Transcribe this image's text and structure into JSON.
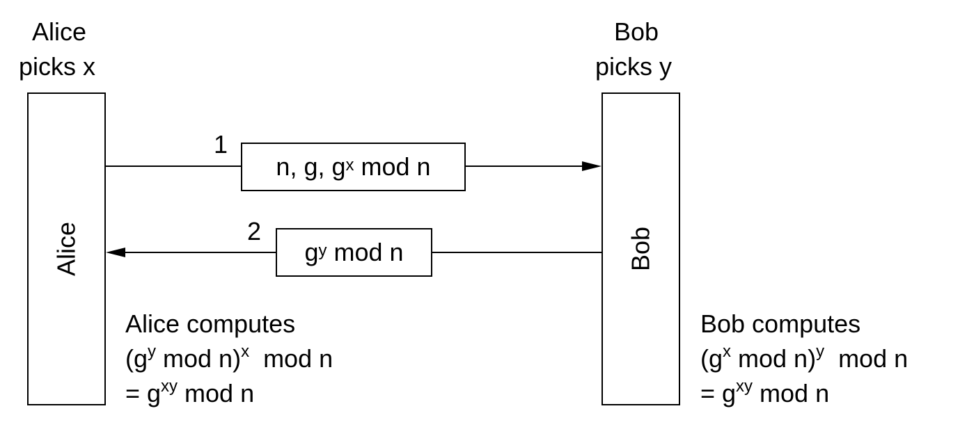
{
  "alice": {
    "header_name": "Alice",
    "header_pick": "picks x",
    "box_label": "Alice",
    "computes_title": "Alice computes",
    "computes_line2_a": "(g",
    "computes_line2_a_sup": "y",
    "computes_line2_b": " mod n)",
    "computes_line2_b_sup": "x",
    "computes_line2_c": "  mod n",
    "computes_line3_a": "= g",
    "computes_line3_sup": "xy",
    "computes_line3_b": " mod n"
  },
  "bob": {
    "header_name": "Bob",
    "header_pick": "picks y",
    "box_label": "Bob",
    "computes_title": "Bob computes",
    "computes_line2_a": "(g",
    "computes_line2_a_sup": "x",
    "computes_line2_b": " mod n)",
    "computes_line2_b_sup": "y",
    "computes_line2_c": "  mod n",
    "computes_line3_a": "= g",
    "computes_line3_sup": "xy",
    "computes_line3_b": " mod n"
  },
  "messages": [
    {
      "number": "1",
      "text_a": "n, g, g",
      "text_sup": "x",
      "text_b": " mod n",
      "direction": "alice-to-bob"
    },
    {
      "number": "2",
      "text_a": "g",
      "text_sup": "y",
      "text_b": " mod n",
      "direction": "bob-to-alice"
    }
  ]
}
